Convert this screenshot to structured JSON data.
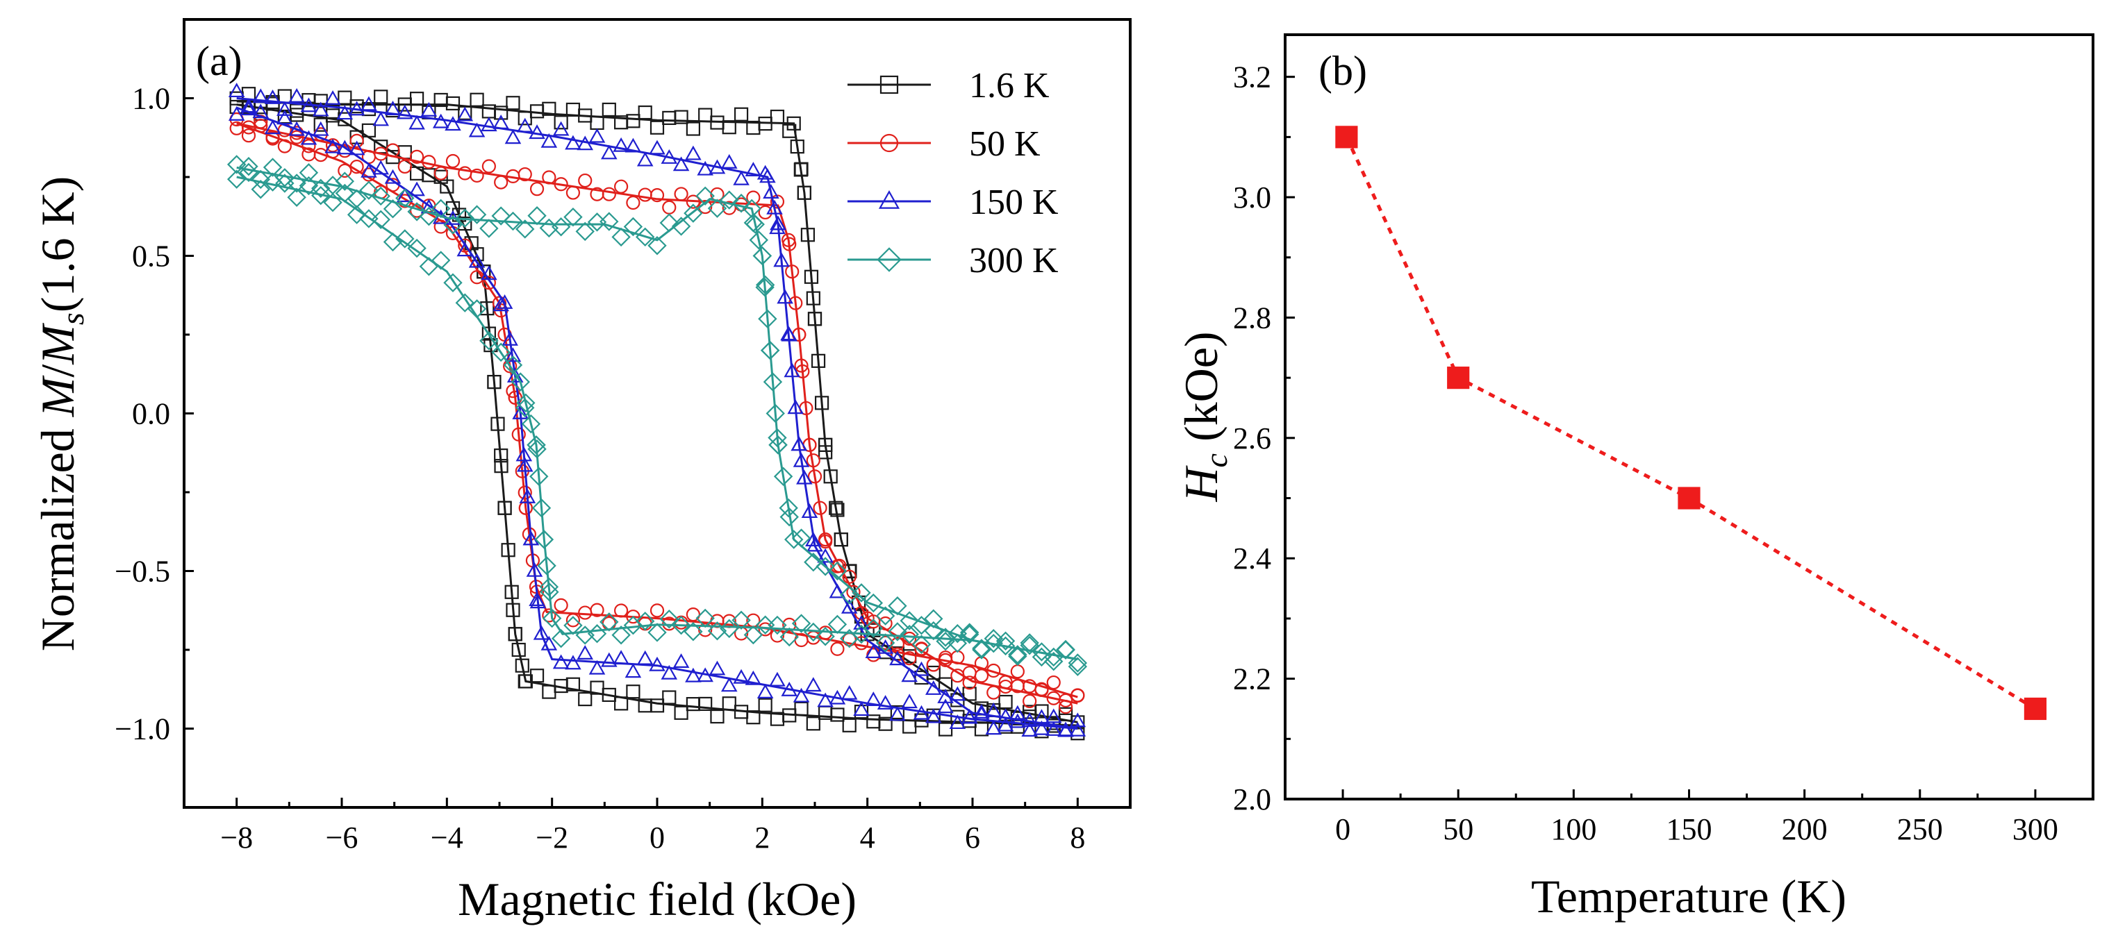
{
  "chart_data": [
    {
      "type": "line",
      "panel_label": "(a)",
      "xlabel": "Magnetic field (kOe)",
      "ylabel": {
        "prefix": "Normalized ",
        "M": "M",
        "slash": "/",
        "Ms_base": "M",
        "Ms_sub": "s",
        "suffix": "(1.6 K)"
      },
      "xlim": [
        -9,
        9
      ],
      "ylim": [
        -1.25,
        1.25
      ],
      "xticks": [
        -8,
        -6,
        -4,
        -2,
        0,
        2,
        4,
        6,
        8
      ],
      "xticklabels": [
        "−8",
        "−6",
        "−4",
        "−2",
        "0",
        "2",
        "4",
        "6",
        "8"
      ],
      "yticks": [
        -1.0,
        -0.5,
        0.0,
        0.5,
        1.0
      ],
      "yticklabels": [
        "−1.0",
        "−0.5",
        "0.0",
        "0.5",
        "1.0"
      ],
      "legend_position": "top-right",
      "series": [
        {
          "name": "1.6 K",
          "legend_label": "1.6 K",
          "color": "#1a1a1a",
          "marker": "square",
          "Hc": 3.1,
          "down_sweep": {
            "x": [
              8,
              6,
              4,
              3.5,
              3.2,
              3.0,
              2.8,
              2.6,
              0,
              -2,
              -4,
              -6,
              -8
            ],
            "y": [
              -0.98,
              -0.92,
              -0.7,
              -0.4,
              -0.1,
              0.3,
              0.7,
              0.92,
              0.93,
              0.95,
              0.98,
              0.98,
              0.99
            ]
          },
          "up_sweep": {
            "x": [
              -8,
              -6,
              -4,
              -3.3,
              -3.1,
              -2.9,
              -2.7,
              -2.5,
              0,
              2,
              4,
              6,
              8
            ],
            "y": [
              0.98,
              0.93,
              0.72,
              0.45,
              0.1,
              -0.3,
              -0.7,
              -0.85,
              -0.92,
              -0.95,
              -0.97,
              -0.98,
              -0.99
            ]
          }
        },
        {
          "name": "50 K",
          "legend_label": "50  K",
          "color": "#e0201b",
          "marker": "circle",
          "Hc": 2.7,
          "down_sweep": {
            "x": [
              8,
              6,
              4,
              3.2,
              2.9,
              2.7,
              2.5,
              2.3,
              0,
              -2,
              -4,
              -6,
              -8
            ],
            "y": [
              -0.92,
              -0.85,
              -0.65,
              -0.4,
              -0.1,
              0.25,
              0.55,
              0.66,
              0.68,
              0.73,
              0.78,
              0.85,
              0.92
            ]
          },
          "up_sweep": {
            "x": [
              -8,
              -6,
              -4,
              -3,
              -2.7,
              -2.5,
              -2.3,
              -2.1,
              0,
              2,
              4,
              6,
              8
            ],
            "y": [
              0.92,
              0.8,
              0.6,
              0.35,
              0.05,
              -0.3,
              -0.55,
              -0.63,
              -0.65,
              -0.68,
              -0.74,
              -0.8,
              -0.9
            ]
          }
        },
        {
          "name": "150 K",
          "legend_label": "150 K",
          "color": "#1f1fcf",
          "marker": "triangle",
          "Hc": 2.5,
          "down_sweep": {
            "x": [
              8,
              6,
              4,
              3.0,
              2.7,
              2.5,
              2.3,
              2.1,
              0,
              -2,
              -4,
              -6,
              -8
            ],
            "y": [
              -1.0,
              -0.95,
              -0.72,
              -0.42,
              -0.1,
              0.25,
              0.6,
              0.75,
              0.82,
              0.88,
              0.93,
              0.97,
              1.0
            ]
          },
          "up_sweep": {
            "x": [
              -8,
              -6,
              -4,
              -2.9,
              -2.6,
              -2.4,
              -2.2,
              -2.0,
              0,
              2,
              4,
              6,
              8
            ],
            "y": [
              0.97,
              0.85,
              0.62,
              0.35,
              0.0,
              -0.4,
              -0.7,
              -0.78,
              -0.8,
              -0.86,
              -0.92,
              -0.97,
              -1.0
            ]
          }
        },
        {
          "name": "300 K",
          "legend_label": "300 K",
          "color": "#2a9a90",
          "marker": "diamond",
          "Hc": 2.15,
          "down_sweep": {
            "x": [
              8,
              6,
              4,
              2.6,
              2.3,
              2.15,
              2.0,
              1.8,
              1.0,
              0,
              -1,
              -2,
              -4,
              -6,
              -8
            ],
            "y": [
              -0.78,
              -0.72,
              -0.6,
              -0.4,
              -0.1,
              0.2,
              0.5,
              0.65,
              0.68,
              0.55,
              0.6,
              0.6,
              0.62,
              0.72,
              0.78
            ]
          },
          "up_sweep": {
            "x": [
              -8,
              -6,
              -4,
              -2.6,
              -2.3,
              -2.15,
              -2.0,
              -1.8,
              0,
              2,
              4,
              6,
              8
            ],
            "y": [
              0.75,
              0.68,
              0.45,
              0.1,
              -0.1,
              -0.4,
              -0.65,
              -0.7,
              -0.67,
              -0.68,
              -0.7,
              -0.72,
              -0.78
            ]
          }
        }
      ]
    },
    {
      "type": "scatter",
      "panel_label": "(b)",
      "xlabel": "Temperature (K)",
      "ylabel": {
        "H": "H",
        "sub": "c",
        "suffix": " (kOe)"
      },
      "xlim": [
        -25,
        325
      ],
      "ylim": [
        2.0,
        3.27
      ],
      "xticks": [
        0,
        50,
        100,
        150,
        200,
        250,
        300
      ],
      "xticklabels": [
        "0",
        "50",
        "100",
        "150",
        "200",
        "250",
        "300"
      ],
      "yticks": [
        2.0,
        2.2,
        2.4,
        2.6,
        2.8,
        3.0,
        3.2
      ],
      "yticklabels": [
        "2.0",
        "2.2",
        "2.4",
        "2.6",
        "2.8",
        "3.0",
        "3.2"
      ],
      "series": [
        {
          "name": "Hc",
          "color": "#ee1c1c",
          "marker": "square",
          "line": "dotted",
          "x": [
            1.6,
            50,
            150,
            300
          ],
          "y": [
            3.1,
            2.7,
            2.5,
            2.15
          ]
        }
      ]
    }
  ]
}
